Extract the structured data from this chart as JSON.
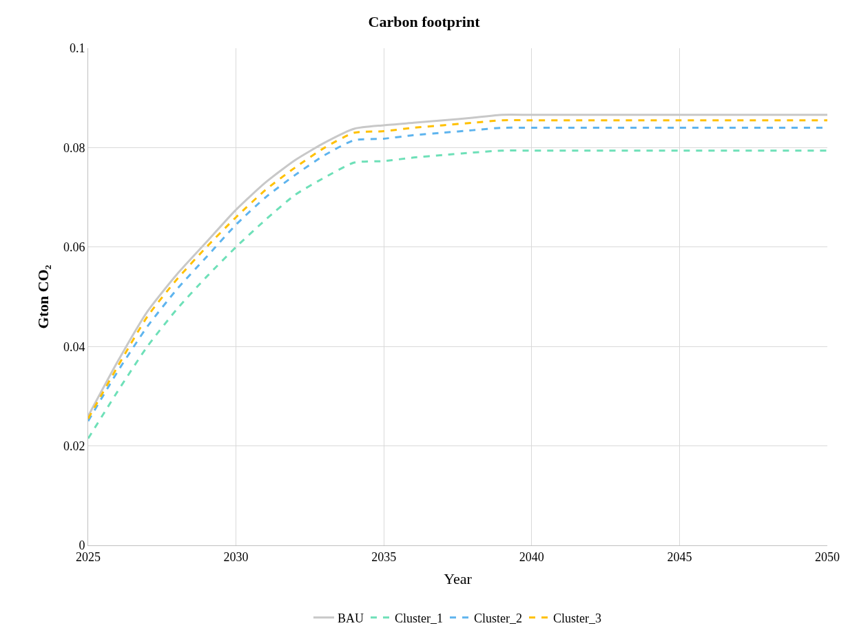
{
  "chart_data": {
    "type": "line",
    "title": "Carbon footprint",
    "xlabel": "Year",
    "ylabel": "Gton CO₂",
    "x": [
      2025,
      2026,
      2027,
      2028,
      2029,
      2030,
      2031,
      2032,
      2033,
      2034,
      2035,
      2036,
      2037,
      2038,
      2039,
      2040,
      2045,
      2050
    ],
    "xlim": [
      2025,
      2050
    ],
    "xticks": [
      2025,
      2030,
      2035,
      2040,
      2045,
      2050
    ],
    "ylim": [
      0,
      0.1
    ],
    "yticks": [
      0,
      0.02,
      0.04,
      0.06,
      0.08,
      0.1
    ],
    "grid": true,
    "legend": "bottom",
    "marker": "none",
    "series": [
      {
        "name": "BAU",
        "color": "#c8c8c8",
        "line_style": "solid",
        "values": [
          0.026,
          0.037,
          0.047,
          0.0545,
          0.061,
          0.0675,
          0.073,
          0.0775,
          0.081,
          0.0838,
          0.0845,
          0.085,
          0.0855,
          0.086,
          0.0866,
          0.0866,
          0.0866,
          0.0866
        ]
      },
      {
        "name": "Cluster_1",
        "color": "#6ee0b8",
        "line_style": "dashed",
        "values": [
          0.0215,
          0.031,
          0.04,
          0.0475,
          0.054,
          0.06,
          0.0655,
          0.0705,
          0.074,
          0.077,
          0.0773,
          0.078,
          0.0785,
          0.079,
          0.0794,
          0.0794,
          0.0794,
          0.0794
        ]
      },
      {
        "name": "Cluster_2",
        "color": "#5eb4ee",
        "line_style": "dashed",
        "values": [
          0.025,
          0.035,
          0.044,
          0.0515,
          0.058,
          0.0645,
          0.07,
          0.0745,
          0.0785,
          0.0815,
          0.0818,
          0.0825,
          0.083,
          0.0835,
          0.084,
          0.084,
          0.084,
          0.084
        ]
      },
      {
        "name": "Cluster_3",
        "color": "#ffc000",
        "line_style": "dashed",
        "values": [
          0.0255,
          0.036,
          0.046,
          0.0535,
          0.06,
          0.066,
          0.0715,
          0.076,
          0.08,
          0.083,
          0.0833,
          0.084,
          0.0845,
          0.085,
          0.0855,
          0.0855,
          0.0855,
          0.0855
        ]
      }
    ]
  }
}
